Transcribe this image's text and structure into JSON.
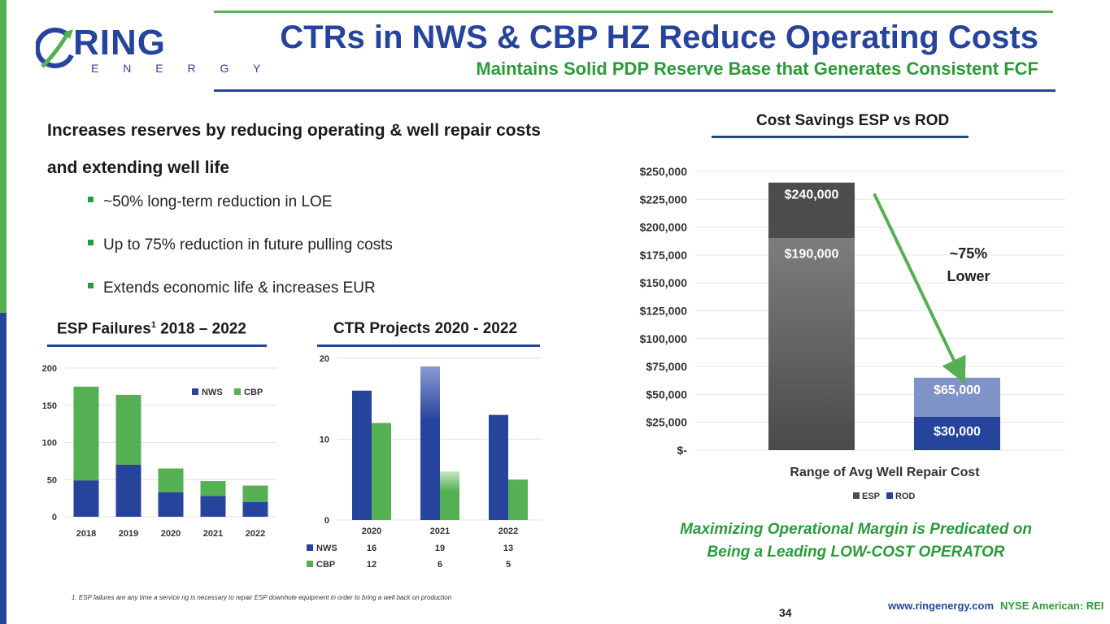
{
  "header": {
    "logo_main": "RING",
    "logo_sub": "E N E R G Y",
    "title": "CTRs in NWS & CBP HZ Reduce Operating Costs",
    "subtitle": "Maintains Solid PDP Reserve Base that Generates Consistent FCF"
  },
  "intro": {
    "heading": "Increases reserves by reducing operating & well repair costs and extending well life",
    "bullets": [
      "~50% long-term reduction in LOE",
      "Up to 75% reduction in future pulling costs",
      "Extends economic life & increases EUR"
    ]
  },
  "colors": {
    "blue": "#27449c",
    "green": "#55b054",
    "dark_green": "#2b9a3a",
    "esp_gray": "#4d4d4d",
    "rod_light": "#7f93c8"
  },
  "footer": {
    "footnote": "1.   ESP failures are any time a service rig is necessary to repair ESP downhole equipment in order to bring a well back on production",
    "page_number": "34",
    "website": "www.ringenergy.com",
    "exchange": "NYSE American: REI"
  },
  "tagline": {
    "line1": "Maximizing Operational Margin is Predicated on",
    "line2": "Being a Leading LOW-COST OPERATOR"
  },
  "chart_data": [
    {
      "type": "bar",
      "stacked": true,
      "title": "ESP Failures",
      "title_sup": "1",
      "title_suffix": " 2018 – 2022",
      "categories": [
        "2018",
        "2019",
        "2020",
        "2021",
        "2022"
      ],
      "series": [
        {
          "name": "NWS",
          "values": [
            49,
            70,
            33,
            28,
            20
          ]
        },
        {
          "name": "CBP",
          "values": [
            126,
            94,
            32,
            20,
            22
          ]
        }
      ],
      "ylim": [
        0,
        200
      ],
      "yticks": [
        "0",
        "50",
        "100",
        "150",
        "200"
      ],
      "legend": "top-right"
    },
    {
      "type": "bar",
      "stacked": false,
      "title": "CTR Projects 2020 - 2022",
      "categories": [
        "2020",
        "2021",
        "2022"
      ],
      "series": [
        {
          "name": "NWS",
          "values": [
            16,
            19,
            13
          ]
        },
        {
          "name": "CBP",
          "values": [
            12,
            6,
            5
          ]
        }
      ],
      "ylim": [
        0,
        20
      ],
      "yticks": [
        "0",
        "10",
        "20"
      ],
      "table_rows": [
        {
          "name": "NWS",
          "cells": [
            "16",
            "19",
            "13"
          ]
        },
        {
          "name": "CBP",
          "cells": [
            "12",
            "6",
            "5"
          ]
        }
      ]
    },
    {
      "type": "bar",
      "stacked": true,
      "title": "Cost Savings ESP vs ROD",
      "xlabel": "Range of Avg Well Repair Cost",
      "categories": [
        "ESP",
        "ROD"
      ],
      "series": [
        {
          "name": "ESP",
          "low": 190000,
          "high": 240000,
          "low_label": "$190,000",
          "high_label": "$240,000"
        },
        {
          "name": "ROD",
          "low": 30000,
          "high": 65000,
          "low_label": "$30,000",
          "high_label": "$65,000"
        }
      ],
      "ylim": [
        0,
        250000
      ],
      "yticks": [
        "$-",
        "$25,000",
        "$50,000",
        "$75,000",
        "$100,000",
        "$125,000",
        "$150,000",
        "$175,000",
        "$200,000",
        "$225,000",
        "$250,000"
      ],
      "annotation_line1": "~75%",
      "annotation_line2": "Lower",
      "legend": "bottom"
    }
  ]
}
